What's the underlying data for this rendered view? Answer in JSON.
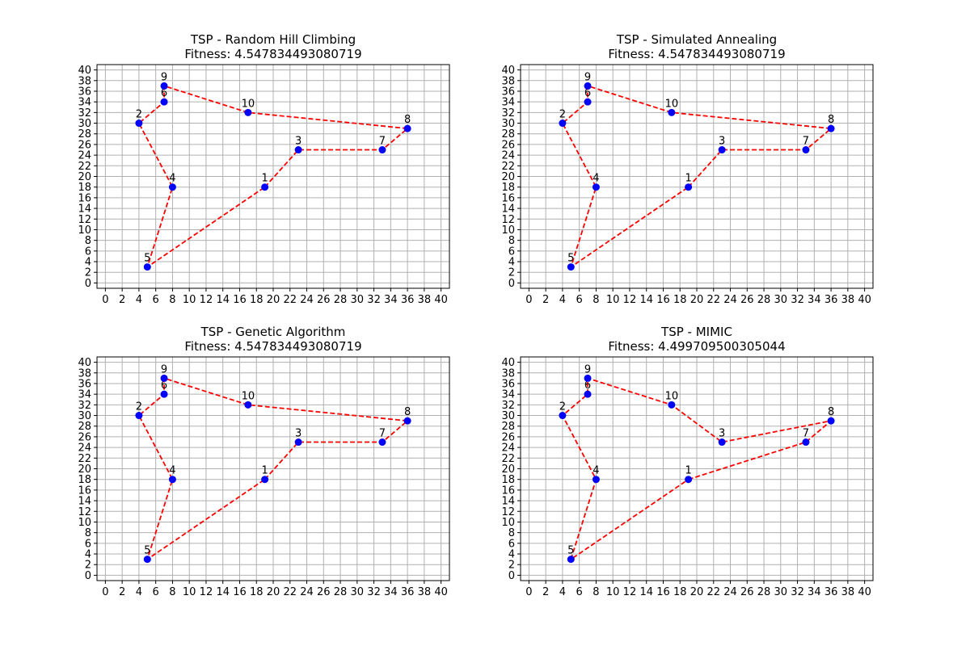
{
  "colors": {
    "point": "#0000ff",
    "route": "#ff0000",
    "grid": "#b0b0b0"
  },
  "chart_data": [
    {
      "type": "scatter",
      "title": "TSP - Random Hill Climbing",
      "subtitle": "Fitness: 4.547834493080719",
      "xlim": [
        -1,
        41
      ],
      "ylim": [
        -1,
        41
      ],
      "xticks": [
        0,
        2,
        4,
        6,
        8,
        10,
        12,
        14,
        16,
        18,
        20,
        22,
        24,
        26,
        28,
        30,
        32,
        34,
        36,
        38,
        40
      ],
      "yticks": [
        0,
        2,
        4,
        6,
        8,
        10,
        12,
        14,
        16,
        18,
        20,
        22,
        24,
        26,
        28,
        30,
        32,
        34,
        36,
        38,
        40
      ],
      "grid": true,
      "points": [
        {
          "label": "1",
          "x": 19,
          "y": 18
        },
        {
          "label": "2",
          "x": 4,
          "y": 30
        },
        {
          "label": "3",
          "x": 23,
          "y": 25
        },
        {
          "label": "4",
          "x": 8,
          "y": 18
        },
        {
          "label": "5",
          "x": 5,
          "y": 3
        },
        {
          "label": "6",
          "x": 7,
          "y": 34
        },
        {
          "label": "7",
          "x": 33,
          "y": 25
        },
        {
          "label": "8",
          "x": 36,
          "y": 29
        },
        {
          "label": "9",
          "x": 7,
          "y": 37
        },
        {
          "label": "10",
          "x": 17,
          "y": 32
        }
      ],
      "route": [
        "1",
        "3",
        "7",
        "8",
        "10",
        "9",
        "6",
        "2",
        "4",
        "5",
        "1"
      ]
    },
    {
      "type": "scatter",
      "title": "TSP - Simulated Annealing",
      "subtitle": "Fitness: 4.547834493080719",
      "xlim": [
        -1,
        41
      ],
      "ylim": [
        -1,
        41
      ],
      "xticks": [
        0,
        2,
        4,
        6,
        8,
        10,
        12,
        14,
        16,
        18,
        20,
        22,
        24,
        26,
        28,
        30,
        32,
        34,
        36,
        38,
        40
      ],
      "yticks": [
        0,
        2,
        4,
        6,
        8,
        10,
        12,
        14,
        16,
        18,
        20,
        22,
        24,
        26,
        28,
        30,
        32,
        34,
        36,
        38,
        40
      ],
      "grid": true,
      "points": [
        {
          "label": "1",
          "x": 19,
          "y": 18
        },
        {
          "label": "2",
          "x": 4,
          "y": 30
        },
        {
          "label": "3",
          "x": 23,
          "y": 25
        },
        {
          "label": "4",
          "x": 8,
          "y": 18
        },
        {
          "label": "5",
          "x": 5,
          "y": 3
        },
        {
          "label": "6",
          "x": 7,
          "y": 34
        },
        {
          "label": "7",
          "x": 33,
          "y": 25
        },
        {
          "label": "8",
          "x": 36,
          "y": 29
        },
        {
          "label": "9",
          "x": 7,
          "y": 37
        },
        {
          "label": "10",
          "x": 17,
          "y": 32
        }
      ],
      "route": [
        "1",
        "3",
        "7",
        "8",
        "10",
        "9",
        "6",
        "2",
        "4",
        "5",
        "1"
      ]
    },
    {
      "type": "scatter",
      "title": "TSP - Genetic Algorithm",
      "subtitle": "Fitness: 4.547834493080719",
      "xlim": [
        -1,
        41
      ],
      "ylim": [
        -1,
        41
      ],
      "xticks": [
        0,
        2,
        4,
        6,
        8,
        10,
        12,
        14,
        16,
        18,
        20,
        22,
        24,
        26,
        28,
        30,
        32,
        34,
        36,
        38,
        40
      ],
      "yticks": [
        0,
        2,
        4,
        6,
        8,
        10,
        12,
        14,
        16,
        18,
        20,
        22,
        24,
        26,
        28,
        30,
        32,
        34,
        36,
        38,
        40
      ],
      "grid": true,
      "points": [
        {
          "label": "1",
          "x": 19,
          "y": 18
        },
        {
          "label": "2",
          "x": 4,
          "y": 30
        },
        {
          "label": "3",
          "x": 23,
          "y": 25
        },
        {
          "label": "4",
          "x": 8,
          "y": 18
        },
        {
          "label": "5",
          "x": 5,
          "y": 3
        },
        {
          "label": "6",
          "x": 7,
          "y": 34
        },
        {
          "label": "7",
          "x": 33,
          "y": 25
        },
        {
          "label": "8",
          "x": 36,
          "y": 29
        },
        {
          "label": "9",
          "x": 7,
          "y": 37
        },
        {
          "label": "10",
          "x": 17,
          "y": 32
        }
      ],
      "route": [
        "1",
        "3",
        "7",
        "8",
        "10",
        "9",
        "6",
        "2",
        "4",
        "5",
        "1"
      ]
    },
    {
      "type": "scatter",
      "title": "TSP - MIMIC",
      "subtitle": "Fitness: 4.499709500305044",
      "xlim": [
        -1,
        41
      ],
      "ylim": [
        -1,
        41
      ],
      "xticks": [
        0,
        2,
        4,
        6,
        8,
        10,
        12,
        14,
        16,
        18,
        20,
        22,
        24,
        26,
        28,
        30,
        32,
        34,
        36,
        38,
        40
      ],
      "yticks": [
        0,
        2,
        4,
        6,
        8,
        10,
        12,
        14,
        16,
        18,
        20,
        22,
        24,
        26,
        28,
        30,
        32,
        34,
        36,
        38,
        40
      ],
      "grid": true,
      "points": [
        {
          "label": "1",
          "x": 19,
          "y": 18
        },
        {
          "label": "2",
          "x": 4,
          "y": 30
        },
        {
          "label": "3",
          "x": 23,
          "y": 25
        },
        {
          "label": "4",
          "x": 8,
          "y": 18
        },
        {
          "label": "5",
          "x": 5,
          "y": 3
        },
        {
          "label": "6",
          "x": 7,
          "y": 34
        },
        {
          "label": "7",
          "x": 33,
          "y": 25
        },
        {
          "label": "8",
          "x": 36,
          "y": 29
        },
        {
          "label": "9",
          "x": 7,
          "y": 37
        },
        {
          "label": "10",
          "x": 17,
          "y": 32
        }
      ],
      "route": [
        "1",
        "7",
        "8",
        "3",
        "10",
        "9",
        "6",
        "2",
        "4",
        "5",
        "1"
      ]
    }
  ]
}
